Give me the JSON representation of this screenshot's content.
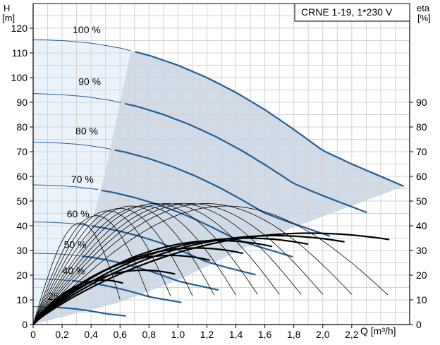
{
  "chart_data": {
    "type": "line",
    "title": "CRNE 1-19, 1*230 V",
    "y_left_label": [
      "H",
      "[m]"
    ],
    "y_right_label": [
      "eta",
      "[%]"
    ],
    "x_label": "Q [m³/h]",
    "x_ticks": [
      "0",
      "0,2",
      "0,4",
      "0,6",
      "0,8",
      "1,0",
      "1,2",
      "1,4",
      "1,6",
      "1,8",
      "2,0",
      "2,2"
    ],
    "x_tick_values": [
      0,
      0.2,
      0.4,
      0.6,
      0.8,
      1.0,
      1.2,
      1.4,
      1.6,
      1.8,
      2.0,
      2.2
    ],
    "y_left_ticks": [
      "0",
      "10",
      "20",
      "30",
      "40",
      "50",
      "60",
      "70",
      "80",
      "90",
      "100",
      "110",
      "120"
    ],
    "y_left_tick_values": [
      0,
      10,
      20,
      30,
      40,
      50,
      60,
      70,
      80,
      90,
      100,
      110,
      120
    ],
    "y_right_ticks": [
      "0",
      "10",
      "20",
      "30",
      "40",
      "50",
      "60",
      "70",
      "80",
      "90"
    ],
    "y_right_tick_values": [
      0,
      10,
      20,
      30,
      40,
      50,
      60,
      70,
      80,
      90
    ],
    "xlim": [
      0,
      2.6
    ],
    "ylim": [
      0,
      130
    ],
    "grid": true,
    "colors": {
      "head_curve": "#1f5e96",
      "efficiency_curve": "#000000",
      "operating_area": "#d0dbe7",
      "extended_area": "#eaf3fb",
      "grid": "#d3d3d3",
      "axis": "#000000"
    },
    "speed_labels": [
      "100 %",
      "90 %",
      "80 %",
      "70 %",
      "60 %",
      "50 %",
      "40 %",
      "25 %"
    ],
    "head_curves": [
      {
        "name": "100 %",
        "speed": 1.0,
        "label": "100 %",
        "label_at": [
          0.37,
          118
        ]
      },
      {
        "name": "90 %",
        "speed": 0.9,
        "label": "90 %",
        "label_at": [
          0.39,
          97
        ]
      },
      {
        "name": "80 %",
        "speed": 0.8,
        "label": "80 %",
        "label_at": [
          0.37,
          77
        ]
      },
      {
        "name": "70 %",
        "speed": 0.7,
        "label": "70 %",
        "label_at": [
          0.34,
          57.5
        ]
      },
      {
        "name": "60 %",
        "speed": 0.6,
        "label": "60 %",
        "label_at": [
          0.31,
          43.5
        ]
      },
      {
        "name": "50 %",
        "speed": 0.5,
        "label": "50 %",
        "label_at": [
          0.29,
          31
        ]
      },
      {
        "name": "40 %",
        "speed": 0.4,
        "label": "40 %",
        "label_at": [
          0.28,
          20.5
        ]
      },
      {
        "name": "25 %",
        "speed": 0.25,
        "label": "25 %",
        "label_at": [
          0.18,
          10
        ]
      }
    ],
    "full_speed_head": {
      "q": [
        0,
        0.2,
        0.4,
        0.6,
        0.8,
        1.0,
        1.2,
        1.4,
        1.6,
        1.8,
        2.0,
        2.2,
        2.4,
        2.56
      ],
      "h": [
        115.5,
        115.0,
        114.0,
        112.0,
        109.0,
        105.0,
        100.0,
        94.0,
        87.0,
        79.0,
        70.5,
        65.0,
        60.0,
        56.0
      ]
    },
    "boundary_points": {
      "min_flow_full_speed": [
        0.68,
        112.0
      ],
      "max_flow_full_speed": [
        2.56,
        56.0
      ],
      "left_boundary": [
        [
          0.68,
          112.0
        ],
        [
          0.6,
          90.0
        ],
        [
          0.5,
          62.0
        ],
        [
          0.4,
          40.0
        ],
        [
          0.25,
          18.0
        ],
        [
          0.0,
          0.0
        ]
      ],
      "right_boundary": [
        [
          2.56,
          56.0
        ],
        [
          1.6,
          35.0
        ],
        [
          1.0,
          18.0
        ],
        [
          0.6,
          9.0
        ],
        [
          0.0,
          0.0
        ]
      ]
    },
    "efficiency_curves": [
      {
        "speed": 0.25,
        "peak_eta": 18,
        "q_max": 0.62
      },
      {
        "speed": 0.4,
        "peak_eta": 22,
        "q_max": 0.98
      },
      {
        "speed": 0.5,
        "peak_eta": 28,
        "q_max": 1.22
      },
      {
        "speed": 0.6,
        "peak_eta": 31,
        "q_max": 1.45
      },
      {
        "speed": 0.7,
        "peak_eta": 34,
        "q_max": 1.65
      },
      {
        "speed": 0.8,
        "peak_eta": 35,
        "q_max": 1.9
      },
      {
        "speed": 0.9,
        "peak_eta": 36,
        "q_max": 2.15
      },
      {
        "speed": 1.0,
        "peak_eta": 37,
        "q_max": 2.46
      }
    ],
    "thin_efficiency_curves": [
      {
        "q_max": 0.6,
        "peak_eta": 42
      },
      {
        "q_max": 0.8,
        "peak_eta": 45
      },
      {
        "q_max": 0.95,
        "peak_eta": 47
      },
      {
        "q_max": 1.1,
        "peak_eta": 48
      },
      {
        "q_max": 1.25,
        "peak_eta": 49
      },
      {
        "q_max": 1.4,
        "peak_eta": 49
      },
      {
        "q_max": 1.55,
        "peak_eta": 50
      },
      {
        "q_max": 1.7,
        "peak_eta": 50
      },
      {
        "q_max": 1.85,
        "peak_eta": 50
      },
      {
        "q_max": 2.0,
        "peak_eta": 50
      },
      {
        "q_max": 2.2,
        "peak_eta": 50
      },
      {
        "q_max": 2.45,
        "peak_eta": 49
      }
    ]
  }
}
